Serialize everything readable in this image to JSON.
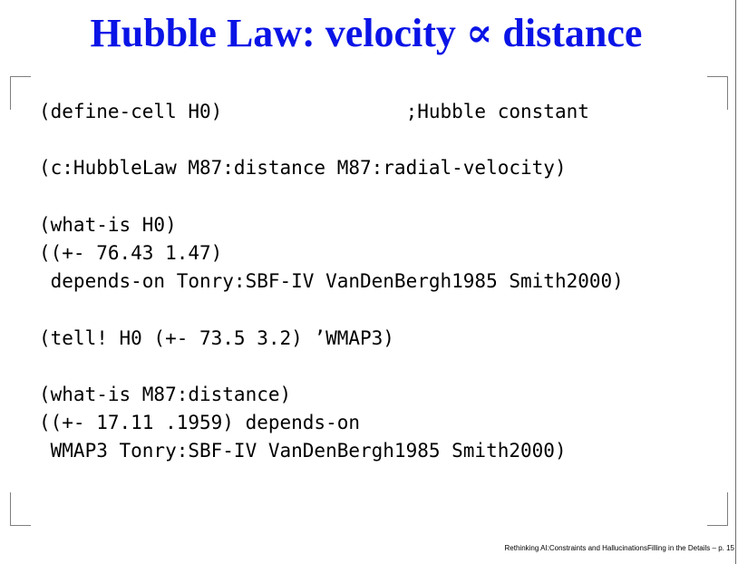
{
  "slide": {
    "title": "Hubble Law: velocity ∝ distance",
    "code_lines": [
      "(define-cell H0)                ;Hubble constant",
      "(c:HubbleLaw M87:distance M87:radial-velocity)",
      "(what-is H0)",
      "((+- 76.43 1.47)",
      " depends-on Tonry:SBF-IV VanDenBergh1985 Smith2000)",
      "(tell! H0 (+- 73.5 3.2) ’WMAP3)",
      "(what-is M87:distance)",
      "((+- 17.11 .1959) depends-on",
      " WMAP3 Tonry:SBF-IV VanDenBergh1985 Smith2000)"
    ],
    "footer": "Rethinking AI:Constraints and HallucinationsFilling in the Details – p. 15"
  }
}
